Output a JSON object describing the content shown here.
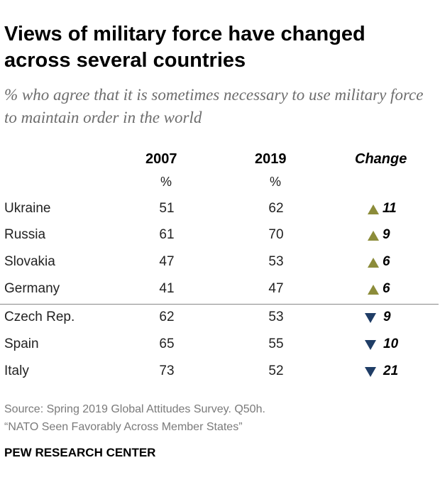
{
  "title": "Views of military force have changed across several countries",
  "subtitle": "% who agree that it is sometimes necessary to use military force to maintain order in the world",
  "colors": {
    "up": "#8c8c3a",
    "down": "#1f3d66"
  },
  "chart_data": {
    "type": "table",
    "columns": [
      "2007",
      "2019",
      "Change"
    ],
    "units": [
      "%",
      "%",
      ""
    ],
    "rows": [
      {
        "country": "Ukraine",
        "y2007": "51",
        "y2019": "62",
        "change": "11",
        "direction": "up"
      },
      {
        "country": "Russia",
        "y2007": "61",
        "y2019": "70",
        "change": "9",
        "direction": "up"
      },
      {
        "country": "Slovakia",
        "y2007": "47",
        "y2019": "53",
        "change": "6",
        "direction": "up"
      },
      {
        "country": "Germany",
        "y2007": "41",
        "y2019": "47",
        "change": "6",
        "direction": "up"
      },
      {
        "country": "Czech Rep.",
        "y2007": "62",
        "y2019": "53",
        "change": "9",
        "direction": "down"
      },
      {
        "country": "Spain",
        "y2007": "65",
        "y2019": "55",
        "change": "10",
        "direction": "down"
      },
      {
        "country": "Italy",
        "y2007": "73",
        "y2019": "52",
        "change": "21",
        "direction": "down"
      }
    ]
  },
  "source": {
    "line1": "Source: Spring 2019 Global Attitudes Survey. Q50h.",
    "line2": "“NATO Seen Favorably Across Member States”"
  },
  "brand": "PEW RESEARCH CENTER"
}
